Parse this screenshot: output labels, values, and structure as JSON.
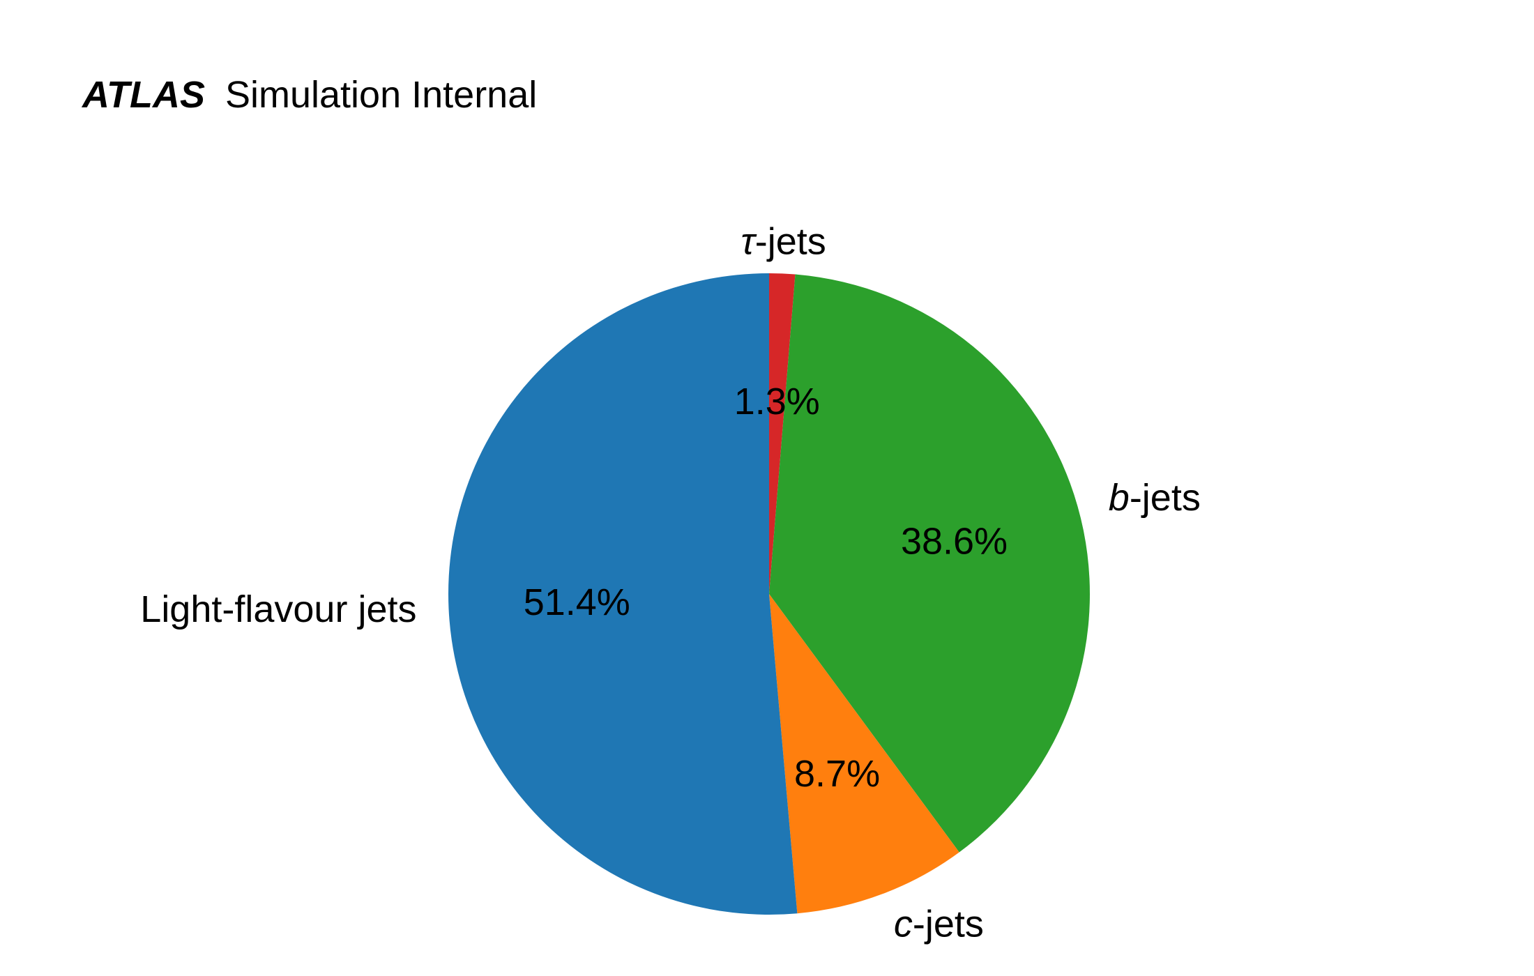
{
  "header": {
    "experiment": "ATLAS",
    "status": "Simulation Internal"
  },
  "chart_data": {
    "type": "pie",
    "start_angle_deg": 90,
    "direction": "clockwise",
    "slices": [
      {
        "id": "tau",
        "label_symbol": "τ",
        "label_suffix": "-jets",
        "label": "τ-jets",
        "value": 1.3,
        "pct_label": "1.3%",
        "color": "#d62728"
      },
      {
        "id": "b",
        "label_symbol": "b",
        "label_suffix": "-jets",
        "label": "b-jets",
        "value": 38.6,
        "pct_label": "38.6%",
        "color": "#2ca02c"
      },
      {
        "id": "c",
        "label_symbol": "c",
        "label_suffix": "-jets",
        "label": "c-jets",
        "value": 8.7,
        "pct_label": "8.7%",
        "color": "#ff7f0e"
      },
      {
        "id": "light",
        "label_symbol": "",
        "label_suffix": "Light-flavour jets",
        "label": "Light-flavour jets",
        "value": 51.4,
        "pct_label": "51.4%",
        "color": "#1f77b4"
      }
    ]
  }
}
